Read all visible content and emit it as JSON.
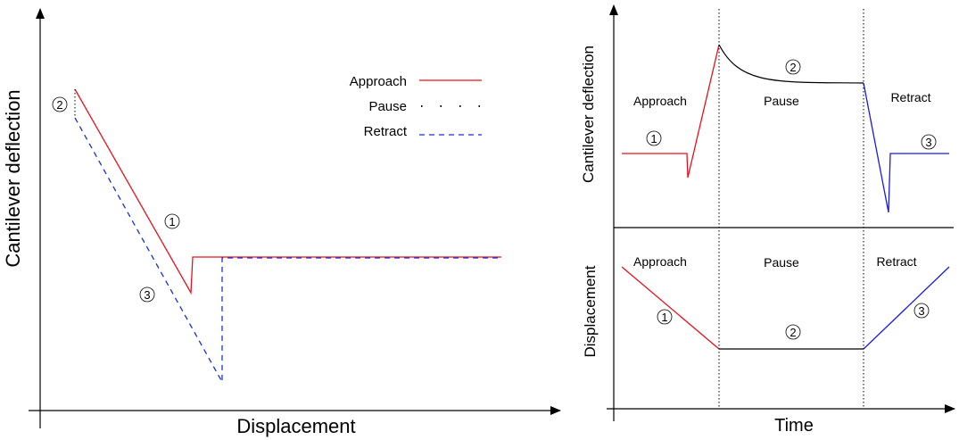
{
  "left_panel": {
    "xlabel": "Displacement",
    "ylabel": "Cantilever  deflection",
    "legend": [
      {
        "label": "Approach",
        "color": "#e8101a",
        "style": "solid"
      },
      {
        "label": "Pause",
        "color": "#000000",
        "style": "dotted"
      },
      {
        "label": "Retract",
        "color": "#1a2ed6",
        "style": "dashed"
      }
    ],
    "markers": {
      "approach": "1",
      "pause": "2",
      "retract": "3"
    }
  },
  "right_top": {
    "ylabel": "Cantilever deflection",
    "phases": [
      "Approach",
      "Pause",
      "Retract"
    ],
    "markers": {
      "approach": "1",
      "pause": "2",
      "retract": "3"
    }
  },
  "right_bottom": {
    "ylabel": "Displacement",
    "xlabel": "Time",
    "phases": [
      "Approach",
      "Pause",
      "Retract"
    ],
    "markers": {
      "approach": "1",
      "pause": "2",
      "retract": "3"
    }
  }
}
